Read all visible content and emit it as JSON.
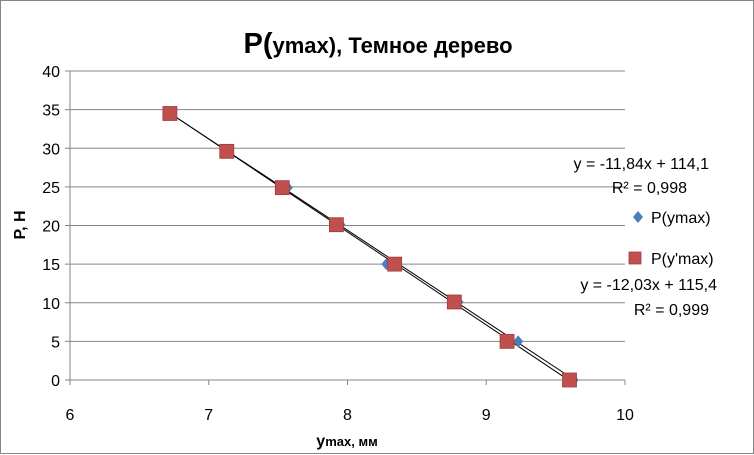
{
  "chart_data": {
    "type": "scatter",
    "title": "P(ymax), Темное дерево",
    "title_parts": {
      "before_sub": "P(",
      "sub": "y",
      "after_sub": "max), Темное дерево"
    },
    "xlabel": "ymax, мм",
    "xlabel_parts": {
      "sub": "y",
      "after_sub": "max, мм"
    },
    "ylabel": "P, Н",
    "xlim": [
      6,
      10
    ],
    "ylim": [
      0,
      40
    ],
    "xticks": [
      "6",
      "7",
      "8",
      "9",
      "10"
    ],
    "yticks": [
      "0",
      "5",
      "10",
      "15",
      "20",
      "25",
      "30",
      "35",
      "40"
    ],
    "grid": "horizontal major",
    "legend_position": "right",
    "series": [
      {
        "name": "P(ymax)",
        "marker": "diamond",
        "color": "#4A7EBB",
        "x": [
          9.63,
          9.23,
          8.8,
          8.28,
          7.95,
          7.57,
          7.14,
          6.73
        ],
        "y": [
          0,
          5,
          10.1,
          15,
          20.1,
          24.9,
          29.6,
          34.5
        ],
        "trendline": {
          "slope": -11.84,
          "intercept": 114.1,
          "equation": "y = -11,84x + 114,1",
          "r2": "R² = 0,998"
        }
      },
      {
        "name": "P(y'max)",
        "marker": "square",
        "color": "#C0504D",
        "x": [
          9.6,
          9.15,
          8.77,
          8.34,
          7.92,
          7.53,
          7.13,
          6.72
        ],
        "y": [
          0,
          5,
          10.1,
          15,
          20.1,
          24.9,
          29.6,
          34.5
        ],
        "trendline": {
          "slope": -12.03,
          "intercept": 115.4,
          "equation": "y = -12,03x + 115,4",
          "r2": "R² = 0,999"
        }
      }
    ]
  }
}
